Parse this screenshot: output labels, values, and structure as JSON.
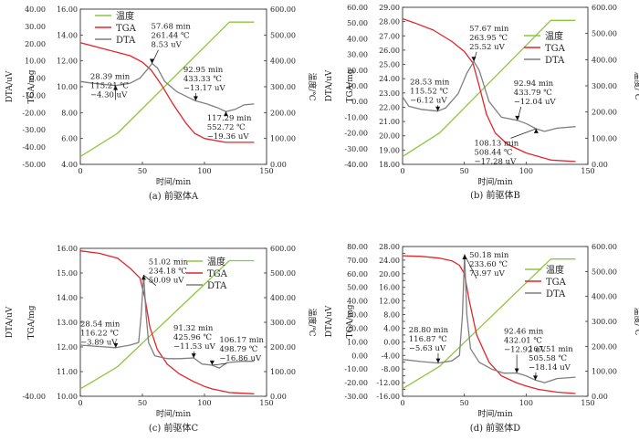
{
  "colors": {
    "temperature": "#8cc63f",
    "tga": "#e3242b",
    "dta": "#7f7f7f"
  },
  "chart_data": [
    {
      "id": "A",
      "type": "line",
      "caption": "(a) 前驱体A",
      "xlabel": "时间/min",
      "ylabel_left": "DTA/uV",
      "ylabel_tga": "TGA/mg",
      "ylabel_right": "温度/℃",
      "xlim": [
        0,
        150
      ],
      "xticks": [
        0,
        50,
        100,
        150
      ],
      "dta_lim": [
        -50,
        40
      ],
      "dta_ticks": [
        "40.00",
        "30.00",
        "20.00",
        "10.00",
        "0.00",
        "-10.00",
        "-20.00",
        "-30.00",
        "-40.00",
        "-50.00"
      ],
      "tga_lim": [
        4,
        16
      ],
      "tga_ticks": [
        "16.00",
        "14.00",
        "12.00",
        "10.00",
        "8.00",
        "6.00",
        "4.00"
      ],
      "temp_lim": [
        0,
        600
      ],
      "temp_ticks": [
        "600.00",
        "500.00",
        "400.00",
        "300.00",
        "200.00",
        "100.00",
        "0.00"
      ],
      "legend": [
        "温度",
        "TGA",
        "DTA"
      ],
      "series": [
        {
          "name": "温度",
          "axis": "temp",
          "x": [
            0,
            30,
            120,
            140
          ],
          "y": [
            30,
            120,
            550,
            550
          ]
        },
        {
          "name": "TGA",
          "axis": "tga",
          "x": [
            0,
            20,
            40,
            50,
            57,
            65,
            75,
            85,
            92,
            100,
            117,
            140
          ],
          "y": [
            13.4,
            12.9,
            12.4,
            11.9,
            11.3,
            10.2,
            8.6,
            7.2,
            6.4,
            6.0,
            5.7,
            5.7
          ]
        },
        {
          "name": "DTA",
          "axis": "dta",
          "x": [
            0,
            10,
            28.4,
            40,
            48,
            54,
            57.7,
            62,
            68,
            78,
            88,
            93,
            102,
            110,
            117.3,
            125,
            132,
            140
          ],
          "y": [
            -2,
            -3,
            -4.3,
            -3,
            0,
            5,
            8.5,
            6,
            -2,
            -8,
            -11.5,
            -13.2,
            -15,
            -17,
            -19.4,
            -18,
            -15.5,
            -15
          ]
        }
      ],
      "annotations": [
        {
          "lines": [
            "57.68 min",
            "261.44 ℃",
            "8.53 uV"
          ],
          "text_x": 57,
          "text_dta": 28.5,
          "point_x": 57.68,
          "point_dta": 8.53,
          "anchor": "start"
        },
        {
          "lines": [
            "28.39 min",
            "115.21 ℃",
            "−4.30 uV"
          ],
          "text_x": 8,
          "text_dta": -0.5,
          "point_x": 28.39,
          "point_dta": -4.3,
          "anchor": "start"
        },
        {
          "lines": [
            "92.95 min",
            "433.33 ℃",
            "−13.17 uV"
          ],
          "text_x": 83,
          "text_dta": 3.5,
          "point_x": 92.95,
          "point_dta": -13.17,
          "anchor": "start"
        },
        {
          "lines": [
            "117.29 min",
            "552.72 ℃",
            "−19.36 uV"
          ],
          "text_x": 102,
          "text_dta": -24.5,
          "point_x": 117.29,
          "point_dta": -19.36,
          "anchor": "start"
        }
      ]
    },
    {
      "id": "B",
      "type": "line",
      "caption": "(b) 前驱体B",
      "xlabel": "时间/min",
      "ylabel_left": "DTA/uV",
      "ylabel_tga": "TGA/mg",
      "ylabel_right": "温度/℃",
      "xlim": [
        0,
        150
      ],
      "xticks": [
        0,
        50,
        100,
        150
      ],
      "dta_lim": [
        -40,
        60
      ],
      "dta_ticks": [
        "60.00",
        "50.00",
        "40.00",
        "30.00",
        "20.00",
        "10.00",
        "0.00",
        "-10.00",
        "-20.00",
        "-30.00",
        "-40.00"
      ],
      "tga_lim": [
        18,
        29
      ],
      "tga_ticks": [
        "29.00",
        "28.00",
        "27.00",
        "26.00",
        "25.00",
        "24.00",
        "23.00",
        "22.00",
        "21.00",
        "20.00",
        "19.00",
        "18.00"
      ],
      "temp_lim": [
        0,
        600
      ],
      "temp_ticks": [
        "600.00",
        "500.00",
        "400.00",
        "300.00",
        "200.00",
        "100.00",
        "0.00"
      ],
      "legend": [
        "温度",
        "TGA",
        "DTA"
      ],
      "series": [
        {
          "name": "温度",
          "axis": "temp",
          "x": [
            0,
            30,
            120,
            140
          ],
          "y": [
            30,
            120,
            550,
            550
          ]
        },
        {
          "name": "TGA",
          "axis": "tga",
          "x": [
            0,
            10,
            25,
            40,
            50,
            57,
            62,
            68,
            75,
            85,
            100,
            120,
            140
          ],
          "y": [
            28.2,
            27.9,
            27.4,
            26.6,
            25.9,
            25.1,
            23.5,
            21.5,
            20.2,
            19.4,
            18.8,
            18.3,
            18.2
          ]
        },
        {
          "name": "DTA",
          "axis": "dta",
          "x": [
            0,
            5,
            15,
            28.5,
            35,
            45,
            52,
            57.7,
            62,
            70,
            80,
            92.9,
            100,
            108,
            115,
            125,
            140
          ],
          "y": [
            3,
            -3,
            -5,
            -6.1,
            -4,
            5,
            18,
            25.5,
            20,
            0,
            -10,
            -12,
            -14,
            -17.3,
            -19,
            -17,
            -16
          ]
        }
      ],
      "annotations": [
        {
          "lines": [
            "57.67 min",
            "263.95 ℃",
            "25.52 uV"
          ],
          "text_x": 54,
          "text_dta": 45,
          "point_x": 57.67,
          "point_dta": 25.52,
          "anchor": "start"
        },
        {
          "lines": [
            "28.53 min",
            "115.52 ℃",
            "−6.12 uV"
          ],
          "text_x": 6,
          "text_dta": 11,
          "point_x": 28.53,
          "point_dta": -6.12,
          "anchor": "start"
        },
        {
          "lines": [
            "92.94 min",
            "433.79 ℃",
            "−12.04 uV"
          ],
          "text_x": 90,
          "text_dta": 10,
          "point_x": 92.94,
          "point_dta": -12.04,
          "anchor": "start"
        },
        {
          "lines": [
            "108.13 min",
            "508.44 ℃",
            "−17.28 uV"
          ],
          "text_x": 58,
          "text_dta": -28,
          "point_x": 108.13,
          "point_dta": -17.28,
          "anchor": "start"
        }
      ]
    },
    {
      "id": "C",
      "type": "line",
      "caption": "(c) 前驱体C",
      "xlabel": "时间/min",
      "ylabel_left": "DTA/uV",
      "ylabel_tga": "TGA/mg",
      "ylabel_right": "温度/℃",
      "xlim": [
        0,
        150
      ],
      "xticks": [
        0,
        50,
        100,
        150
      ],
      "dta_lim": [
        -40,
        70
      ],
      "dta_ticks": null,
      "tga_lim": [
        10,
        16
      ],
      "tga_ticks": [
        "16.00",
        "15.00",
        "14.00",
        "13.00",
        "12.00",
        "11.00",
        "10.00"
      ],
      "temp_lim": [
        0,
        600
      ],
      "temp_ticks": [
        "600.00",
        "500.00",
        "400.00",
        "300.00",
        "200.00",
        "100.00",
        "0.00"
      ],
      "dta_tick_labels_shown": [
        "-40.00"
      ],
      "legend": [
        "温度",
        "TGA",
        "DTA"
      ],
      "series": [
        {
          "name": "温度",
          "axis": "temp",
          "x": [
            0,
            30,
            120,
            140
          ],
          "y": [
            30,
            120,
            550,
            550
          ]
        },
        {
          "name": "TGA",
          "axis": "tga",
          "x": [
            0,
            15,
            30,
            40,
            48,
            52,
            56,
            62,
            70,
            80,
            91,
            100,
            106,
            120,
            140
          ],
          "y": [
            15.9,
            15.8,
            15.6,
            15.2,
            14.8,
            14.0,
            12.8,
            11.9,
            11.3,
            10.9,
            10.6,
            10.4,
            10.3,
            10.15,
            10.1
          ]
        },
        {
          "name": "DTA",
          "axis": "dta",
          "x": [
            0,
            15,
            28.5,
            40,
            47,
            49,
            51,
            53,
            55,
            60,
            70,
            80,
            91.3,
            98,
            106.2,
            112,
            118,
            130,
            140
          ],
          "y": [
            -2,
            -3,
            -3.9,
            -2,
            0,
            20,
            50,
            20,
            0,
            -10,
            -12,
            -12,
            -11.5,
            -16,
            -16.9,
            -19,
            -15,
            -14,
            -14
          ]
        }
      ],
      "annotations": [
        {
          "lines": [
            "51.02 min",
            "234.18 ℃",
            "50.09 uV"
          ],
          "text_x": 55,
          "text_dta": 58,
          "point_x": 51.02,
          "point_dta": 50.09,
          "anchor": "start"
        },
        {
          "lines": [
            "28.54 min",
            "116.22 ℃",
            "−3.89 uV"
          ],
          "text_x": 0,
          "text_dta": 12,
          "point_x": 28.54,
          "point_dta": -3.89,
          "anchor": "start"
        },
        {
          "lines": [
            "91.32 min",
            "425.96 ℃",
            "−11.53 uV"
          ],
          "text_x": 75,
          "text_dta": 9,
          "point_x": 91.32,
          "point_dta": -11.53,
          "anchor": "start"
        },
        {
          "lines": [
            "106.17 min",
            "498.79 ℃",
            "−16.86 uV"
          ],
          "text_x": 112,
          "text_dta": 0,
          "point_x": 106.17,
          "point_dta": -16.86,
          "anchor": "start"
        }
      ]
    },
    {
      "id": "D",
      "type": "line",
      "caption": "(d) 前驱体D",
      "xlabel": "时间/min",
      "ylabel_left": "DTA/uV",
      "ylabel_tga": "TGA/mg",
      "ylabel_right": "温度/℃",
      "xlim": [
        0,
        150
      ],
      "xticks": [
        0,
        50,
        100,
        150
      ],
      "dta_lim": [
        -30,
        80
      ],
      "dta_ticks": [
        "80.00",
        "70.00",
        "60.00",
        "50.00",
        "40.00",
        "30.00",
        "20.00",
        "10.00",
        "0.00",
        "-10.00",
        "-20.00",
        "-30.00"
      ],
      "tga_lim": [
        -16,
        28
      ],
      "tga_ticks": [
        "28.00",
        "26.00",
        "24.00",
        "22.00",
        "20.00",
        "18.00",
        "16.00",
        "14.00",
        "12.00",
        "10.00",
        "8.00",
        "6.00",
        "4.00",
        "2.00",
        "0.00",
        "-2.00",
        "-4.00",
        "-6.00",
        "-8.00",
        "-10.00",
        "-12.00",
        "-14.00",
        "-16.00"
      ],
      "temp_lim": [
        0,
        600
      ],
      "temp_ticks": [
        "600.00",
        "500.00",
        "400.00",
        "300.00",
        "200.00",
        "100.00",
        "0.00"
      ],
      "legend": [
        "温度",
        "TGA",
        "DTA"
      ],
      "series": [
        {
          "name": "温度",
          "axis": "temp",
          "x": [
            0,
            30,
            120,
            140
          ],
          "y": [
            30,
            120,
            550,
            550
          ]
        },
        {
          "name": "TGA",
          "axis": "tga",
          "x": [
            0,
            15,
            30,
            40,
            46,
            50,
            54,
            60,
            70,
            80,
            92,
            100,
            110,
            125,
            140
          ],
          "y": [
            25.3,
            25.1,
            24.6,
            23.8,
            22.5,
            20.0,
            12.0,
            2.0,
            -6.0,
            -10.0,
            -12.0,
            -13.0,
            -14.0,
            -14.8,
            -15.2
          ]
        },
        {
          "name": "DTA",
          "axis": "dta",
          "x": [
            0,
            15,
            28.8,
            40,
            46,
            48.5,
            50.2,
            52,
            55,
            62,
            72,
            82,
            92.5,
            100,
            107.5,
            115,
            125,
            140
          ],
          "y": [
            -3,
            -4.5,
            -5.6,
            -4,
            0,
            30,
            74,
            30,
            5,
            -5,
            -10,
            -13,
            -12.9,
            -15,
            -18.1,
            -20,
            -17,
            -16
          ]
        }
      ],
      "annotations": [
        {
          "lines": [
            "50.18 min",
            "233.60 ℃",
            "73.97 uV"
          ],
          "text_x": 54,
          "text_dta": 72,
          "point_x": 50.18,
          "point_dta": 73.97,
          "anchor": "start"
        },
        {
          "lines": [
            "28.80 min",
            "116.87 ℃",
            "−5.63 uV"
          ],
          "text_x": 5,
          "text_dta": 17,
          "point_x": 28.8,
          "point_dta": -5.63,
          "anchor": "start"
        },
        {
          "lines": [
            "92.46 min",
            "432.01 ℃",
            "−12.92 uV"
          ],
          "text_x": 82,
          "text_dta": 16,
          "point_x": 92.46,
          "point_dta": -12.92,
          "anchor": "start"
        },
        {
          "lines": [
            "107.51 min",
            "505.58 ℃",
            "−18.14 uV"
          ],
          "text_x": 102,
          "text_dta": 3,
          "point_x": 107.51,
          "point_dta": -18.14,
          "anchor": "start"
        }
      ]
    }
  ]
}
